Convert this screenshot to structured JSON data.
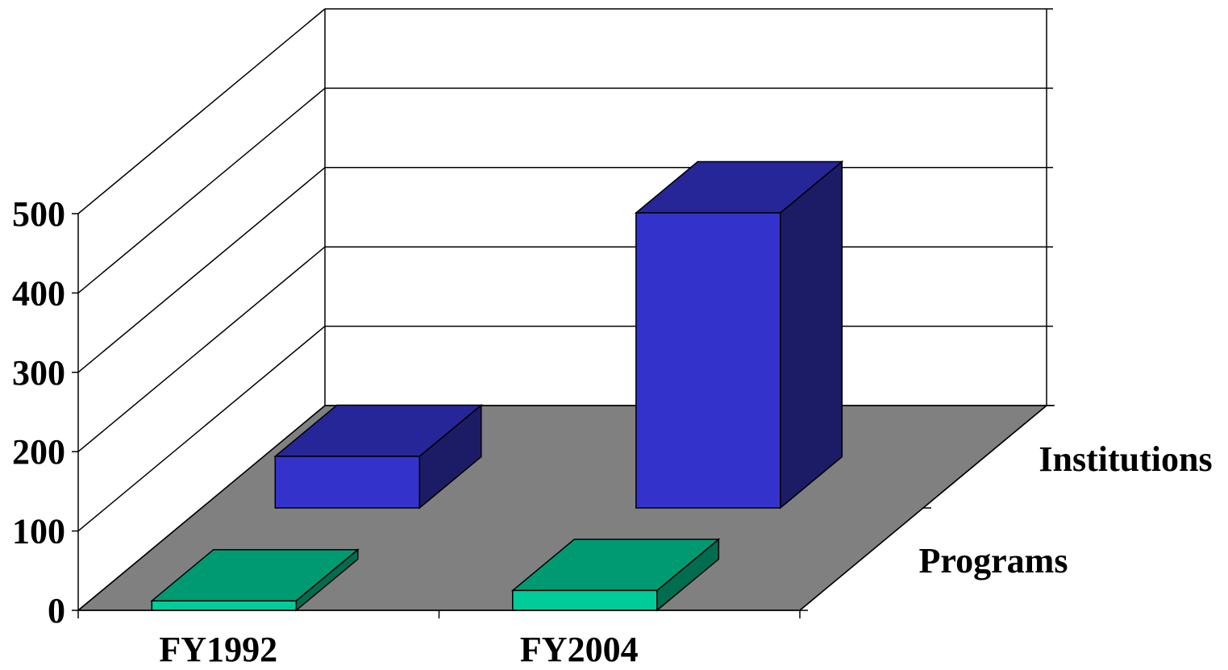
{
  "chart_data": {
    "type": "bar",
    "title": "",
    "xlabel": "",
    "ylabel": "",
    "categories": [
      "FY1992",
      "FY2004"
    ],
    "series": [
      {
        "name": "Programs",
        "values": [
          12,
          25
        ]
      },
      {
        "name": "Institutions",
        "values": [
          65,
          372
        ]
      }
    ],
    "ylim": [
      0,
      500
    ],
    "yticks": [
      0,
      100,
      200,
      300,
      400,
      500
    ],
    "ytick_labels": [
      "0",
      "100",
      "200",
      "300",
      "400",
      "500"
    ],
    "grid": true,
    "legend": "none",
    "colors": {
      "Programs": {
        "front": "#00CC99",
        "top": "#009A72",
        "side": "#006D51"
      },
      "Institutions": {
        "front": "#3333CC",
        "top": "#262699",
        "side": "#1C1C66"
      },
      "floor": "#808080"
    }
  }
}
